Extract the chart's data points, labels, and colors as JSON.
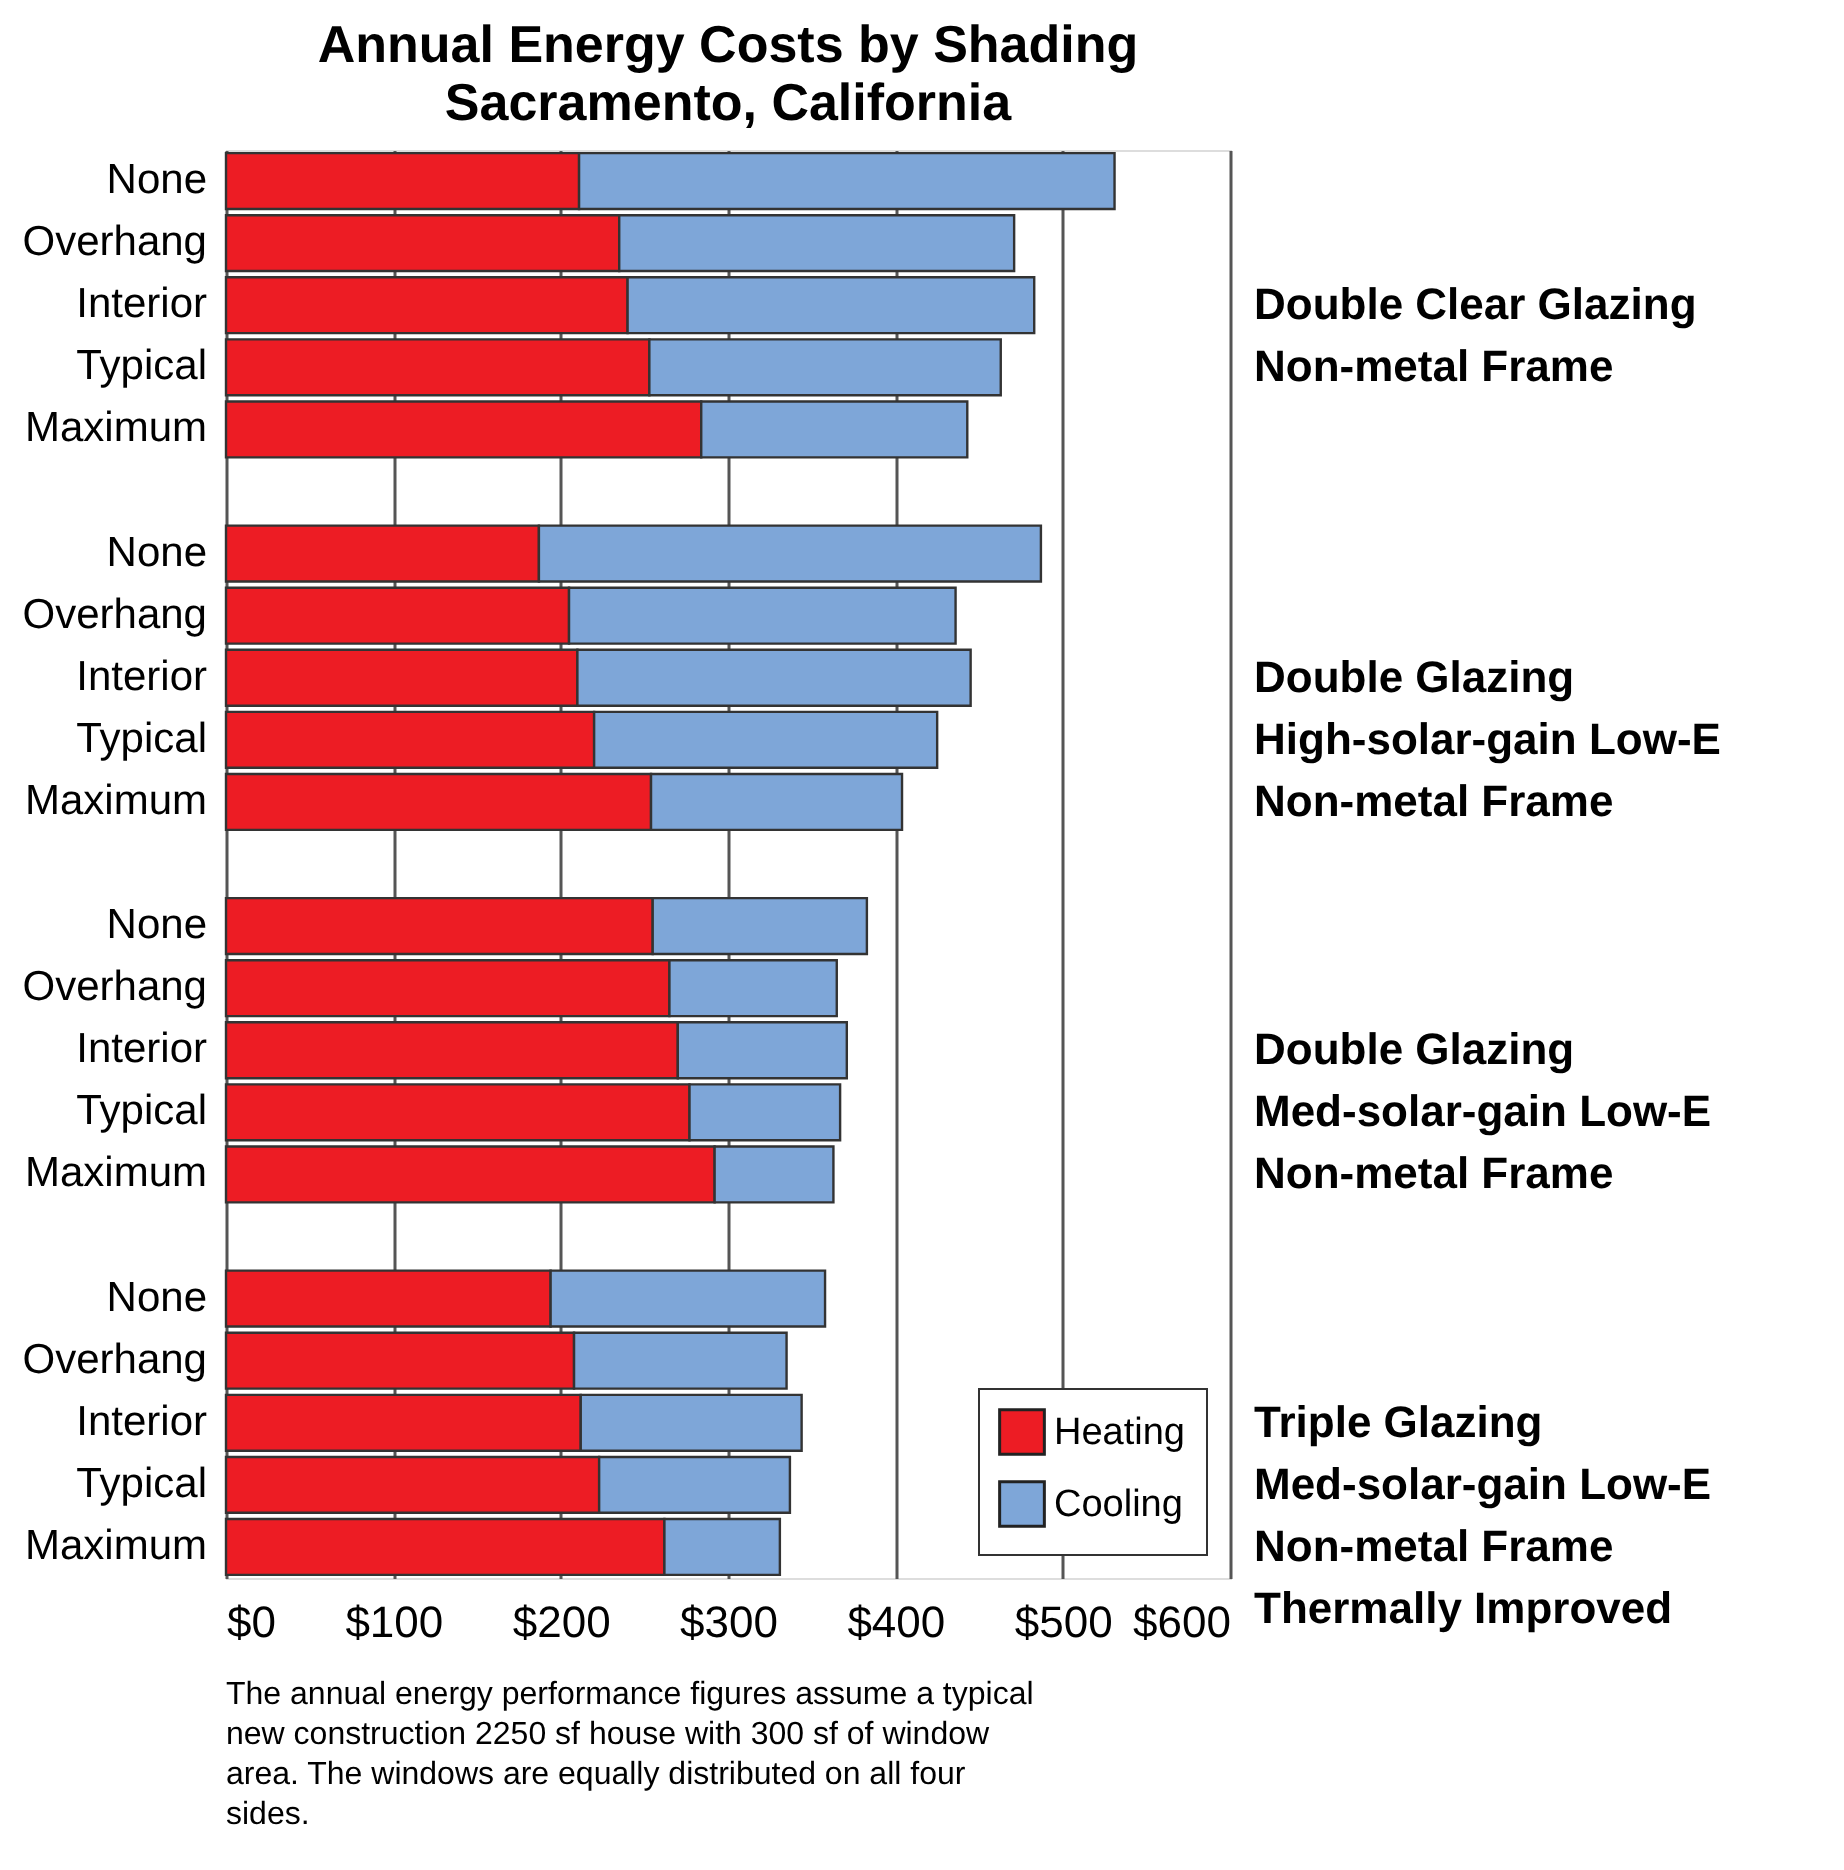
{
  "chart_data": {
    "type": "bar",
    "orientation": "horizontal",
    "stacked": true,
    "title": "Annual Energy Costs by Shading",
    "subtitle": "Sacramento, California",
    "categories": [
      "None",
      "Overhang",
      "Interior",
      "Typical",
      "Maximum",
      null,
      "None",
      "Overhang",
      "Interior",
      "Typical",
      "Maximum",
      null,
      "None",
      "Overhang",
      "Interior",
      "Typical",
      "Maximum",
      null,
      "None",
      "Overhang",
      "Interior",
      "Typical",
      "Maximum"
    ],
    "series": [
      {
        "name": "Heating",
        "color": "#ed1c24",
        "values": [
          211,
          235,
          240,
          253,
          284,
          null,
          187,
          205,
          210,
          220,
          254,
          null,
          255,
          265,
          270,
          277,
          292,
          null,
          194,
          208,
          212,
          223,
          262
        ]
      },
      {
        "name": "Cooling",
        "color": "#7ea6d8",
        "values": [
          320,
          236,
          243,
          210,
          159,
          null,
          300,
          231,
          235,
          205,
          150,
          null,
          128,
          100,
          101,
          90,
          71,
          null,
          164,
          127,
          132,
          114,
          69
        ]
      }
    ],
    "xlim": [
      0,
      600
    ],
    "xticks": [
      {
        "value": 0,
        "label": "$0"
      },
      {
        "value": 100,
        "label": "$100"
      },
      {
        "value": 200,
        "label": "$200"
      },
      {
        "value": 300,
        "label": "$300"
      },
      {
        "value": 400,
        "label": "$400"
      },
      {
        "value": 500,
        "label": "$500"
      },
      {
        "value": 600,
        "label": "$600"
      }
    ],
    "grid": "x",
    "legend": "bottom right",
    "annotations": [
      "Double Clear Glazing\nNon-metal Frame",
      "Double Glazing\nHigh-solar-gain Low-E\nNon-metal Frame",
      "Double Glazing\nMed-solar-gain Low-E\nNon-metal Frame",
      "Triple Glazing\nMed-solar-gain Low-E\nNon-metal Frame\nThermally Improved",
      "The annual energy performance figures assume a typical new construction 2250 sf house with 300 sf of window area. The windows are equally distributed on all four sides."
    ]
  }
}
